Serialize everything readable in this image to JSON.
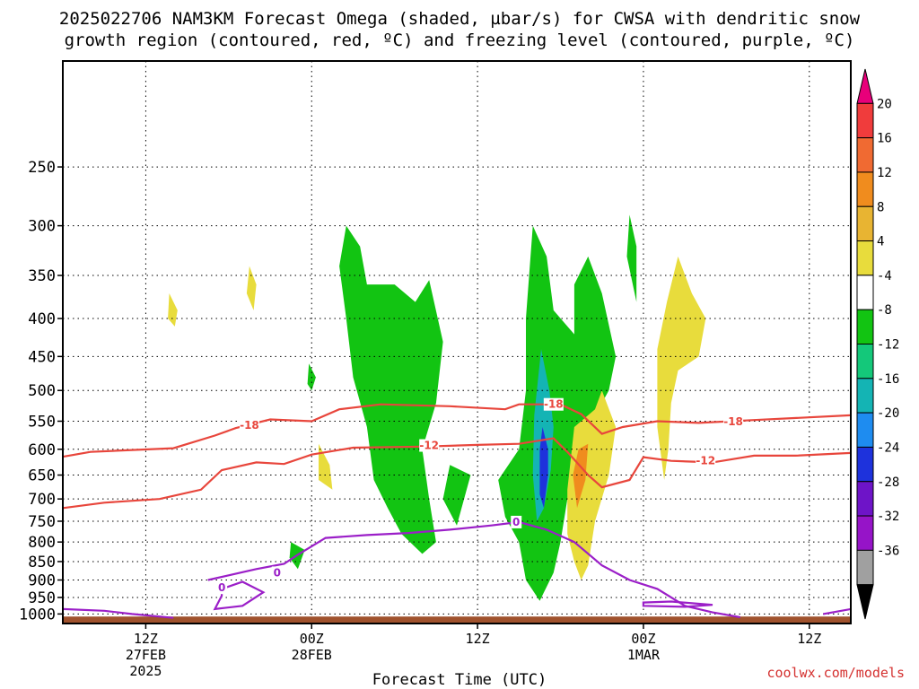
{
  "title": {
    "line1": "2025022706 NAM3KM Forecast Omega (shaded, µbar/s) for CWSA with dendritic snow",
    "line2": "growth region (contoured, red, ºC) and freezing level (contoured, purple, ºC)"
  },
  "credit": "coolwx.com/models",
  "chart_data": {
    "type": "time-height cross section",
    "title": "2025022706 NAM3KM Forecast Omega (shaded, µbar/s) for CWSA with dendritic snow growth region (contoured, red, ºC) and freezing level (contoured, purple, ºC)",
    "xlabel": "Forecast Time (UTC)",
    "ylabel": "",
    "x_axis": {
      "range_hours": [
        -6,
        51
      ],
      "ticks": [
        {
          "hour": 0,
          "line1": "12Z",
          "line2": "27FEB",
          "line3": "2025"
        },
        {
          "hour": 12,
          "line1": "00Z",
          "line2": "28FEB",
          "line3": ""
        },
        {
          "hour": 24,
          "line1": "12Z",
          "line2": "",
          "line3": ""
        },
        {
          "hour": 36,
          "line1": "00Z",
          "line2": "1MAR",
          "line3": ""
        },
        {
          "hour": 48,
          "line1": "12Z",
          "line2": "",
          "line3": ""
        }
      ]
    },
    "y_axis": {
      "unit": "hPa",
      "scale": "log",
      "reversed": true,
      "range": [
        1030,
        180
      ],
      "ticks": [
        250,
        300,
        350,
        400,
        450,
        500,
        550,
        600,
        650,
        700,
        750,
        800,
        850,
        900,
        950,
        1000
      ]
    },
    "grid": true,
    "colorbar": {
      "labels": [
        "20",
        "16",
        "12",
        "8",
        "4",
        "-4",
        "-8",
        "-12",
        "-16",
        "-20",
        "-24",
        "-28",
        "-32",
        "-36"
      ],
      "colors": [
        "#e8007a",
        "#f03c3c",
        "#f06a32",
        "#f08c1e",
        "#e8b432",
        "#e8dc3c",
        "#ffffff",
        "#12c412",
        "#14c87a",
        "#14b4b4",
        "#1e8cf0",
        "#1e32dc",
        "#6e14c8",
        "#9614c8",
        "#a0a0a0",
        "#000000"
      ]
    },
    "contours": {
      "dgz_labels": [
        "-18",
        "-12"
      ],
      "dgz_minus18": [
        [
          -6,
          614
        ],
        [
          -4,
          605
        ],
        [
          2,
          598
        ],
        [
          5,
          575
        ],
        [
          6.5,
          562
        ],
        [
          9,
          547
        ],
        [
          12,
          550
        ],
        [
          14,
          530
        ],
        [
          17,
          522
        ],
        [
          22,
          525
        ],
        [
          26,
          530
        ],
        [
          27,
          522
        ],
        [
          30,
          522
        ],
        [
          31.5,
          538
        ],
        [
          33,
          572
        ],
        [
          34.5,
          560
        ],
        [
          37,
          550
        ],
        [
          40,
          553
        ],
        [
          44,
          548
        ],
        [
          51,
          540
        ]
      ],
      "dgz_minus12": [
        [
          -6,
          720
        ],
        [
          -3,
          708
        ],
        [
          1,
          700
        ],
        [
          4,
          680
        ],
        [
          5.5,
          640
        ],
        [
          8,
          625
        ],
        [
          10,
          628
        ],
        [
          12,
          610
        ],
        [
          15,
          597
        ],
        [
          20,
          595
        ],
        [
          24,
          592
        ],
        [
          27,
          590
        ],
        [
          29.5,
          580
        ],
        [
          30.5,
          605
        ],
        [
          32,
          650
        ],
        [
          33,
          675
        ],
        [
          35,
          660
        ],
        [
          36,
          615
        ],
        [
          38,
          622
        ],
        [
          41,
          625
        ],
        [
          44,
          612
        ],
        [
          47,
          612
        ],
        [
          51,
          607
        ]
      ],
      "freezing_label": "0",
      "freezing_level": [
        [
          4.5,
          900
        ],
        [
          6,
          887
        ],
        [
          8,
          870
        ],
        [
          10,
          856
        ],
        [
          11,
          832
        ],
        [
          13,
          790
        ],
        [
          16,
          783
        ],
        [
          19,
          778
        ],
        [
          22,
          770
        ],
        [
          25,
          760
        ],
        [
          27,
          752
        ],
        [
          29,
          770
        ],
        [
          31,
          800
        ],
        [
          33,
          860
        ],
        [
          35,
          900
        ],
        [
          37,
          925
        ],
        [
          39,
          975
        ],
        [
          41,
          995
        ],
        [
          43,
          1010
        ]
      ],
      "freezing_lobe": [
        [
          5.5,
          925
        ],
        [
          7,
          905
        ],
        [
          8.5,
          935
        ],
        [
          7,
          975
        ],
        [
          5,
          985
        ],
        [
          5.5,
          945
        ]
      ],
      "freezing_sfc_left": [
        [
          -6,
          985
        ],
        [
          -3,
          990
        ],
        [
          -1,
          1000
        ],
        [
          2,
          1012
        ]
      ],
      "freezing_sfc_right": [
        [
          36,
          975
        ],
        [
          39,
          978
        ],
        [
          41,
          972
        ],
        [
          38,
          962
        ],
        [
          36,
          965
        ]
      ],
      "freezing_sfc_far": [
        [
          49,
          1000
        ],
        [
          51,
          985
        ]
      ]
    },
    "shaded_regions": [
      {
        "name": "ascent-column-1",
        "color": "#12c412",
        "polygon": [
          [
            14.5,
            300
          ],
          [
            15.5,
            320
          ],
          [
            16,
            360
          ],
          [
            18,
            360
          ],
          [
            19.5,
            380
          ],
          [
            20.5,
            355
          ],
          [
            21.5,
            430
          ],
          [
            21,
            520
          ],
          [
            20,
            600
          ],
          [
            20.5,
            700
          ],
          [
            21,
            800
          ],
          [
            20,
            830
          ],
          [
            18.5,
            780
          ],
          [
            17.5,
            720
          ],
          [
            16.5,
            660
          ],
          [
            16,
            560
          ],
          [
            15,
            480
          ],
          [
            14.5,
            400
          ],
          [
            14,
            340
          ]
        ]
      },
      {
        "name": "ascent-column-2",
        "color": "#12c412",
        "polygon": [
          [
            28,
            300
          ],
          [
            29,
            330
          ],
          [
            29.5,
            390
          ],
          [
            31,
            420
          ],
          [
            31,
            360
          ],
          [
            32,
            330
          ],
          [
            33,
            370
          ],
          [
            34,
            450
          ],
          [
            33.5,
            500
          ],
          [
            32.5,
            540
          ],
          [
            31.5,
            620
          ],
          [
            30.5,
            700
          ],
          [
            30,
            800
          ],
          [
            29.5,
            880
          ],
          [
            28.5,
            960
          ],
          [
            27.5,
            900
          ],
          [
            27,
            800
          ],
          [
            26,
            740
          ],
          [
            25.5,
            660
          ],
          [
            27,
            600
          ],
          [
            27.5,
            500
          ],
          [
            27.5,
            400
          ]
        ]
      },
      {
        "name": "ascent-core-cyan",
        "color": "#14b4b4",
        "polygon": [
          [
            28.6,
            440
          ],
          [
            29.2,
            500
          ],
          [
            29.5,
            560
          ],
          [
            29.3,
            640
          ],
          [
            28.8,
            720
          ],
          [
            28.3,
            750
          ],
          [
            28.0,
            650
          ],
          [
            28.1,
            540
          ]
        ]
      },
      {
        "name": "ascent-core-blue",
        "color": "#1e32dc",
        "polygon": [
          [
            28.7,
            560
          ],
          [
            29.1,
            600
          ],
          [
            29.1,
            650
          ],
          [
            28.8,
            720
          ],
          [
            28.5,
            690
          ],
          [
            28.5,
            600
          ]
        ]
      },
      {
        "name": "ascent-small-1",
        "color": "#12c412",
        "polygon": [
          [
            22,
            630
          ],
          [
            23.5,
            650
          ],
          [
            22.5,
            760
          ],
          [
            21.5,
            700
          ]
        ]
      },
      {
        "name": "ascent-small-2",
        "color": "#12c412",
        "polygon": [
          [
            10.5,
            800
          ],
          [
            11.5,
            820
          ],
          [
            11,
            870
          ],
          [
            10.4,
            840
          ]
        ]
      },
      {
        "name": "ascent-small-3",
        "color": "#12c412",
        "polygon": [
          [
            11.8,
            460
          ],
          [
            12.3,
            480
          ],
          [
            12.0,
            500
          ],
          [
            11.7,
            490
          ]
        ]
      },
      {
        "name": "ascent-small-4",
        "color": "#12c412",
        "polygon": [
          [
            35,
            290
          ],
          [
            35.5,
            320
          ],
          [
            35.5,
            380
          ],
          [
            34.8,
            330
          ]
        ]
      },
      {
        "name": "descent-right",
        "color": "#e8dc3c",
        "polygon": [
          [
            31,
            560
          ],
          [
            32.5,
            530
          ],
          [
            33,
            500
          ],
          [
            34,
            560
          ],
          [
            33.5,
            650
          ],
          [
            32.5,
            750
          ],
          [
            32,
            860
          ],
          [
            31.5,
            900
          ],
          [
            31,
            850
          ],
          [
            30.5,
            780
          ],
          [
            30.5,
            680
          ]
        ]
      },
      {
        "name": "descent-right-core",
        "color": "#f08c1e",
        "polygon": [
          [
            31.3,
            600
          ],
          [
            32,
            590
          ],
          [
            31.8,
            660
          ],
          [
            31.2,
            720
          ],
          [
            30.9,
            650
          ]
        ]
      },
      {
        "name": "descent-tall",
        "color": "#e8dc3c",
        "polygon": [
          [
            38.5,
            330
          ],
          [
            39.5,
            370
          ],
          [
            40.5,
            400
          ],
          [
            40,
            450
          ],
          [
            38.5,
            470
          ],
          [
            38,
            520
          ],
          [
            37.8,
            600
          ],
          [
            37.5,
            660
          ],
          [
            37,
            560
          ],
          [
            37,
            440
          ],
          [
            37.7,
            380
          ]
        ]
      },
      {
        "name": "descent-small-1",
        "color": "#e8dc3c",
        "polygon": [
          [
            1.7,
            370
          ],
          [
            2.3,
            390
          ],
          [
            2.1,
            410
          ],
          [
            1.6,
            400
          ]
        ]
      },
      {
        "name": "descent-small-2",
        "color": "#e8dc3c",
        "polygon": [
          [
            7.5,
            340
          ],
          [
            8,
            360
          ],
          [
            7.8,
            390
          ],
          [
            7.3,
            370
          ]
        ]
      },
      {
        "name": "descent-small-3",
        "color": "#e8dc3c",
        "polygon": [
          [
            12.5,
            590
          ],
          [
            13.3,
            630
          ],
          [
            13.5,
            680
          ],
          [
            12.5,
            660
          ]
        ]
      }
    ],
    "terrain": {
      "color": "#a0522d",
      "top_hPa": 1008
    }
  }
}
